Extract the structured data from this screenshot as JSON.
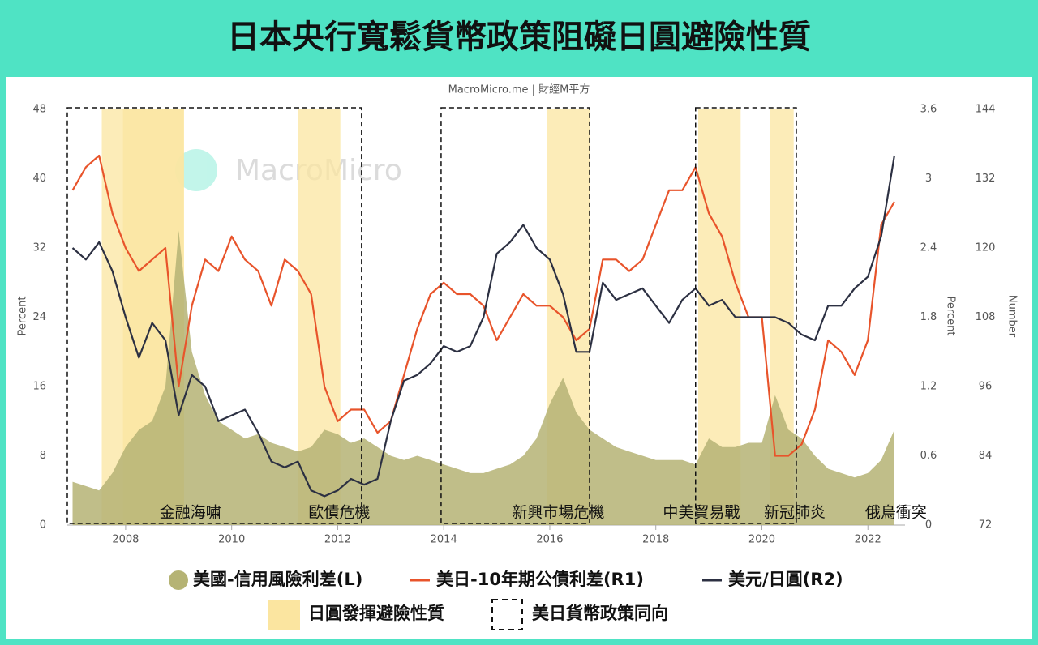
{
  "chart_data": {
    "type": "line",
    "title": "日本央行寬鬆貨幣政策阻礙日圓避險性質",
    "source": "MacroMicro.me | 財經M平方",
    "watermark": "MacroMicro",
    "x": [
      2007,
      2007.25,
      2007.5,
      2007.75,
      2008,
      2008.25,
      2008.5,
      2008.75,
      2009,
      2009.25,
      2009.5,
      2009.75,
      2010,
      2010.25,
      2010.5,
      2010.75,
      2011,
      2011.25,
      2011.5,
      2011.75,
      2012,
      2012.25,
      2012.5,
      2012.75,
      2013,
      2013.25,
      2013.5,
      2013.75,
      2014,
      2014.25,
      2014.5,
      2014.75,
      2015,
      2015.25,
      2015.5,
      2015.75,
      2016,
      2016.25,
      2016.5,
      2016.75,
      2017,
      2017.25,
      2017.5,
      2017.75,
      2018,
      2018.25,
      2018.5,
      2018.75,
      2019,
      2019.25,
      2019.5,
      2019.75,
      2020,
      2020.25,
      2020.5,
      2020.75,
      2021,
      2021.25,
      2021.5,
      2021.75,
      2022,
      2022.25,
      2022.5
    ],
    "xlim": [
      2006.9,
      2022.7
    ],
    "xticks": [
      2008,
      2010,
      2012,
      2014,
      2016,
      2018,
      2020,
      2022
    ],
    "ylabel": "Percent",
    "y2label": "Percent",
    "y3label": "Number",
    "ylim": [
      0,
      48
    ],
    "yticks": [
      0,
      8,
      16,
      24,
      32,
      40,
      48
    ],
    "y2lim": [
      0,
      3.6
    ],
    "y2ticks": [
      0,
      0.6,
      1.2,
      1.8,
      2.4,
      3,
      3.6
    ],
    "y3lim": [
      72,
      144
    ],
    "y3ticks": [
      72,
      84,
      96,
      108,
      120,
      132,
      144
    ],
    "series": [
      {
        "name": "美國-信用風險利差(L)",
        "color": "#b5b374",
        "style": "area",
        "axis": "y",
        "values": [
          5,
          4.5,
          4,
          6,
          9,
          11,
          12,
          16,
          34,
          20,
          15,
          12,
          11,
          10,
          10.5,
          9.5,
          9,
          8.5,
          9,
          11,
          10.5,
          9.5,
          10,
          9,
          8,
          7.5,
          8,
          7.5,
          7,
          6.5,
          6,
          6,
          6.5,
          7,
          8,
          10,
          14,
          17,
          13,
          11,
          10,
          9,
          8.5,
          8,
          7.5,
          7.5,
          7.5,
          7,
          10,
          9,
          9,
          9.5,
          9.5,
          15,
          11,
          10,
          8,
          6.5,
          6,
          5.5,
          6,
          7.5,
          11
        ]
      },
      {
        "name": "美日-10年期公債利差(R1)",
        "color": "#e8542b",
        "style": "line",
        "axis": "y2",
        "values": [
          2.9,
          3.1,
          3.2,
          2.7,
          2.4,
          2.2,
          2.3,
          2.4,
          1.2,
          1.9,
          2.3,
          2.2,
          2.5,
          2.3,
          2.2,
          1.9,
          2.3,
          2.2,
          2.0,
          1.2,
          0.9,
          1.0,
          1.0,
          0.8,
          0.9,
          1.3,
          1.7,
          2.0,
          2.1,
          2.0,
          2.0,
          1.9,
          1.6,
          1.8,
          2.0,
          1.9,
          1.9,
          1.8,
          1.6,
          1.7,
          2.3,
          2.3,
          2.2,
          2.3,
          2.6,
          2.9,
          2.9,
          3.1,
          2.7,
          2.5,
          2.1,
          1.8,
          1.8,
          0.6,
          0.6,
          0.7,
          1.0,
          1.6,
          1.5,
          1.3,
          1.6,
          2.6,
          2.8
        ]
      },
      {
        "name": "美元/日圓(R2)",
        "color": "#2c3042",
        "style": "line",
        "axis": "y3",
        "values": [
          120,
          118,
          121,
          116,
          108,
          101,
          107,
          104,
          91,
          98,
          96,
          90,
          91,
          92,
          88,
          83,
          82,
          83,
          78,
          77,
          78,
          80,
          79,
          80,
          90,
          97,
          98,
          100,
          103,
          102,
          103,
          108,
          119,
          121,
          124,
          120,
          118,
          112,
          102,
          102,
          114,
          111,
          112,
          113,
          110,
          107,
          111,
          113,
          110,
          111,
          108,
          108,
          108,
          108,
          107,
          105,
          104,
          110,
          110,
          113,
          115,
          122,
          136
        ]
      }
    ],
    "highlights": {
      "name": "日圓發揮避險性質",
      "color": "#fbe5a0",
      "ranges": [
        [
          2007.55,
          2009.1
        ],
        [
          2007.95,
          2009.1
        ],
        [
          2011.25,
          2012.05
        ],
        [
          2015.95,
          2016.75
        ],
        [
          2018.8,
          2019.6
        ],
        [
          2020.15,
          2020.6
        ]
      ]
    },
    "boxes": {
      "name": "美日貨幣政策同向",
      "ranges": [
        [
          2006.9,
          2012.45
        ],
        [
          2013.95,
          2016.75
        ],
        [
          2018.75,
          2020.65
        ]
      ]
    },
    "annotations": [
      {
        "text": "金融海嘯",
        "x": 2009.22
      },
      {
        "text": "歐債危機",
        "x": 2012.03
      },
      {
        "text": "新興市場危機",
        "x": 2016.16
      },
      {
        "text": "中美貿易戰",
        "x": 2018.86
      },
      {
        "text": "新冠肺炎",
        "x": 2020.62
      },
      {
        "text": "俄烏衝突",
        "x": 2022.53
      }
    ]
  }
}
